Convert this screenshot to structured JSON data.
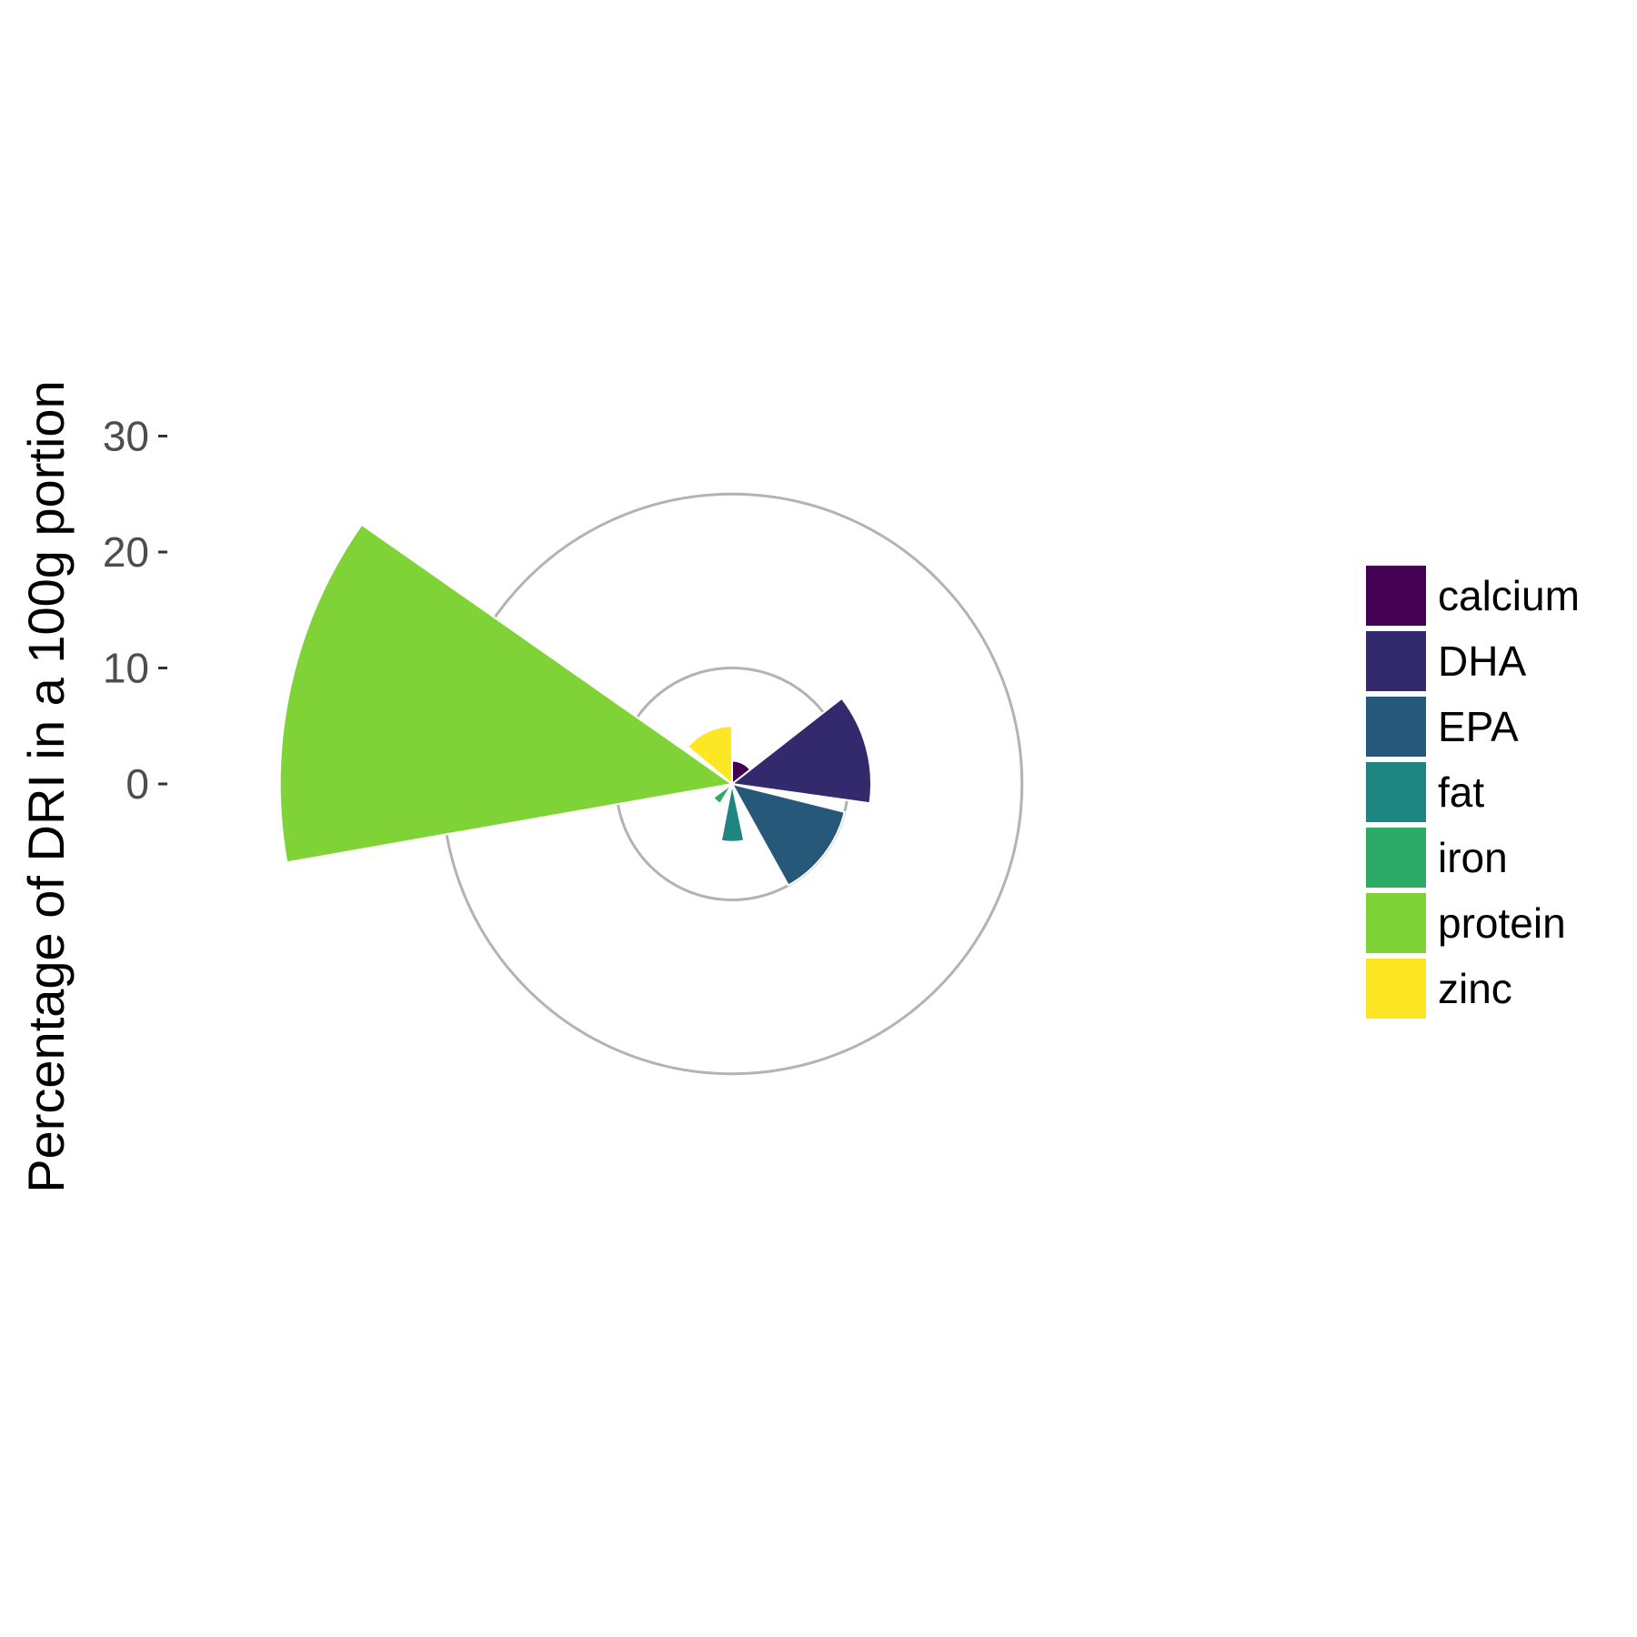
{
  "chart_data": {
    "type": "polar-bar",
    "ylabel": "Percentage of DRI in a 100g portion",
    "y_ticks": [
      0,
      10,
      20,
      30
    ],
    "reference_circles": [
      10,
      25
    ],
    "series": [
      {
        "name": "calcium",
        "value": 2,
        "color": "#440154"
      },
      {
        "name": "DHA",
        "value": 12,
        "color": "#332A6E"
      },
      {
        "name": "EPA",
        "value": 10,
        "color": "#26587A"
      },
      {
        "name": "fat",
        "value": 5,
        "color": "#1F8580"
      },
      {
        "name": "iron",
        "value": 2,
        "color": "#2EAA68"
      },
      {
        "name": "protein",
        "value": 39,
        "color": "#80D337"
      },
      {
        "name": "zinc",
        "value": 5,
        "color": "#FDE725"
      }
    ],
    "legend_position": "right",
    "grid_color": "#b3b3b3"
  }
}
